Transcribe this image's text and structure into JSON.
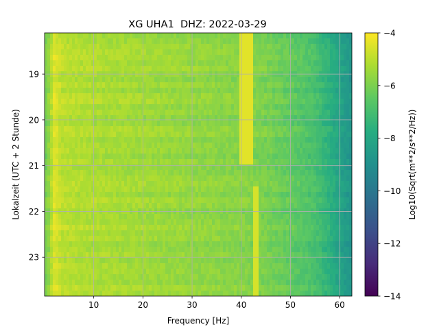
{
  "chart_data": {
    "type": "heatmap",
    "title": "XG UHA1  DHZ: 2022-03-29",
    "xlabel": "Frequency [Hz]",
    "ylabel": "Lokalzeit (UTC + 2 Stunde)",
    "xlim": [
      0,
      62.5
    ],
    "ylim": [
      18.1,
      23.85
    ],
    "y_inverted": true,
    "grid": true,
    "x_ticks": [
      10,
      20,
      30,
      40,
      50,
      60
    ],
    "x_tick_labels": [
      "10",
      "20",
      "30",
      "40",
      "50",
      "60"
    ],
    "y_ticks": [
      19,
      20,
      21,
      22,
      23
    ],
    "y_tick_labels": [
      "19",
      "20",
      "21",
      "22",
      "23"
    ],
    "colormap": "viridis",
    "colorbar": {
      "label": "Log10(Sqrt(m**2/s**2/Hz))",
      "range": [
        -14,
        -4
      ],
      "ticks": [
        -4,
        -6,
        -8,
        -10,
        -12,
        -14
      ],
      "tick_labels": [
        "−4",
        "−6",
        "−8",
        "−10",
        "−12",
        "−14"
      ]
    },
    "level_profile_by_frequency": [
      {
        "hz": 0.5,
        "level": -6.0
      },
      {
        "hz": 2,
        "level": -4.4
      },
      {
        "hz": 3.5,
        "level": -5.0
      },
      {
        "hz": 10,
        "level": -5.2
      },
      {
        "hz": 20,
        "level": -5.4
      },
      {
        "hz": 30,
        "level": -5.6
      },
      {
        "hz": 40,
        "level": -5.8
      },
      {
        "hz": 45,
        "level": -6.0
      },
      {
        "hz": 50,
        "level": -6.4
      },
      {
        "hz": 55,
        "level": -6.9
      },
      {
        "hz": 58,
        "level": -7.6
      },
      {
        "hz": 60,
        "level": -8.2
      },
      {
        "hz": 62.5,
        "level": -8.8
      }
    ],
    "features": [
      {
        "hz_range": [
          39.8,
          42.5
        ],
        "time_range": [
          18.1,
          21.0
        ],
        "level": -4.4
      },
      {
        "hz_range": [
          42.5,
          43.5
        ],
        "time_range": [
          21.5,
          23.85
        ],
        "level": -4.6
      }
    ]
  }
}
